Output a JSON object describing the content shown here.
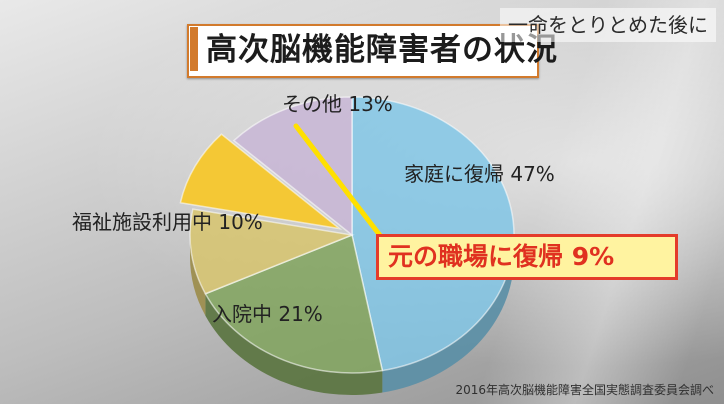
{
  "brand_text": "一命をとりとめた後に",
  "source_note": "2016年高次脳機能障害全国実態調査委員会調べ",
  "chart_data": {
    "type": "pie",
    "title": "高次脳機能障害者の状況",
    "unit": "%",
    "slices": [
      {
        "label": "家庭に復帰",
        "value": 47,
        "display": "家庭に復帰 47%",
        "color": "#7fc6e6"
      },
      {
        "label": "入院中",
        "value": 21,
        "display": "入院中 21%",
        "color": "#7fa35a"
      },
      {
        "label": "福祉施設利用中",
        "value": 10,
        "display": "福祉施設利用中 10%",
        "color": "#d8c46a"
      },
      {
        "label": "元の職場に復帰",
        "value": 9,
        "display": "元の職場に復帰 9%",
        "color": "#f6c72c",
        "highlight": true
      },
      {
        "label": "その他",
        "value": 13,
        "display": "その他 13%",
        "color": "#c7b4d6"
      }
    ],
    "colors": {
      "highlight_border": "#e43b2a",
      "highlight_text": "#e03120",
      "title_accent": "#d27a2c",
      "pointer_line": "#ffe000"
    }
  }
}
